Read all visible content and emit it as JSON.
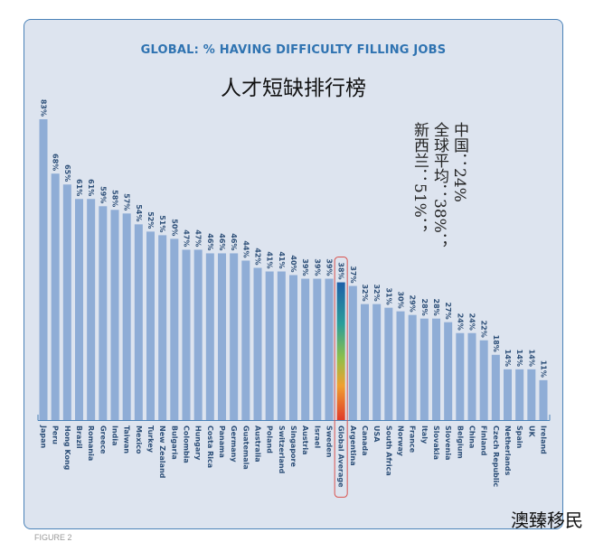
{
  "chart_data": {
    "type": "bar",
    "title": "GLOBAL: % HAVING DIFFICULTY FILLING JOBS",
    "subtitle": "人才短缺排行榜",
    "xlabel": "",
    "ylabel": "",
    "ylim": [
      0,
      85
    ],
    "grid": false,
    "value_suffix": "%",
    "highlight_category": "Global Average",
    "categories": [
      "Japan",
      "Peru",
      "Hong Kong",
      "Brazil",
      "Romania",
      "Greece",
      "India",
      "Taiwan",
      "Mexico",
      "Turkey",
      "New Zealand",
      "Bulgaria",
      "Colombia",
      "Hungary",
      "Costa Rica",
      "Panama",
      "Germany",
      "Guatemala",
      "Australia",
      "Poland",
      "Switzerland",
      "Singapore",
      "Austria",
      "Israel",
      "Sweden",
      "Global Average",
      "Argentina",
      "Canada",
      "USA",
      "South Africa",
      "Norway",
      "France",
      "Italy",
      "Slovakia",
      "Slovenia",
      "Belgium",
      "China",
      "Finland",
      "Czech Republic",
      "Netherlands",
      "Spain",
      "UK",
      "Ireland"
    ],
    "values": [
      83,
      68,
      65,
      61,
      61,
      59,
      58,
      57,
      54,
      52,
      51,
      50,
      47,
      47,
      46,
      46,
      46,
      44,
      42,
      41,
      41,
      40,
      39,
      39,
      39,
      38,
      37,
      32,
      32,
      31,
      30,
      29,
      28,
      28,
      27,
      24,
      24,
      22,
      18,
      14,
      14,
      14,
      11
    ],
    "colors": {
      "bar": "#8fadd6",
      "highlight_border": "#d9534f",
      "axis": "#4a82b8"
    }
  },
  "annotation": {
    "lines": [
      "中国：24%",
      "全球平均：38%；",
      "新西兰：51%；"
    ]
  },
  "watermark": "澳臻移民",
  "footer": "FIGURE 2"
}
